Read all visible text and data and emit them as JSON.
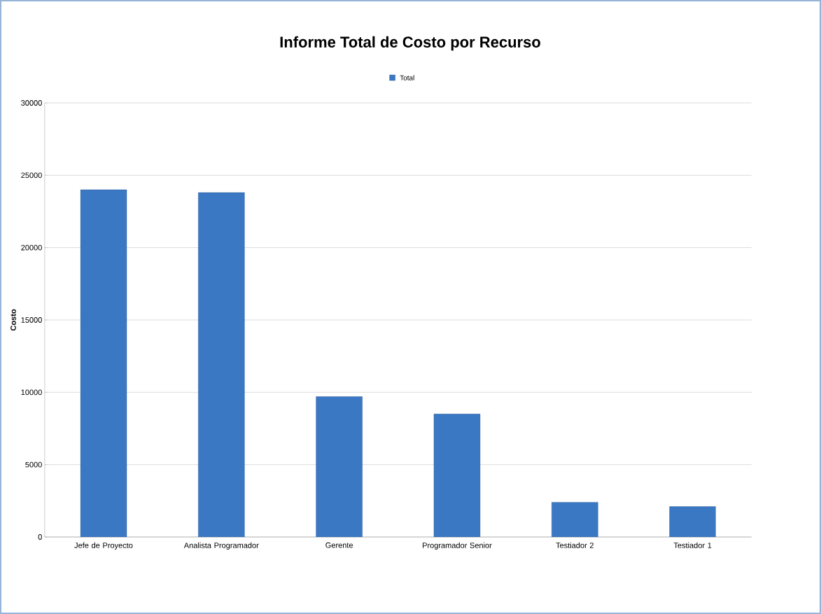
{
  "chart_data": {
    "type": "bar",
    "title": "Informe Total de Costo por Recurso",
    "ylabel": "Costo",
    "categories": [
      "Jefe de Proyecto",
      "Analista Programador",
      "Gerente",
      "Programador Senior",
      "Testiador 2",
      "Testiador 1"
    ],
    "series": [
      {
        "name": "Total",
        "color": "#3b78c4",
        "values": [
          24000,
          23800,
          9700,
          8500,
          2400,
          2100
        ]
      }
    ],
    "ylim": [
      0,
      30000
    ],
    "yticks": [
      0,
      5000,
      10000,
      15000,
      20000,
      25000,
      30000
    ],
    "grid": "y",
    "legend": "top"
  }
}
